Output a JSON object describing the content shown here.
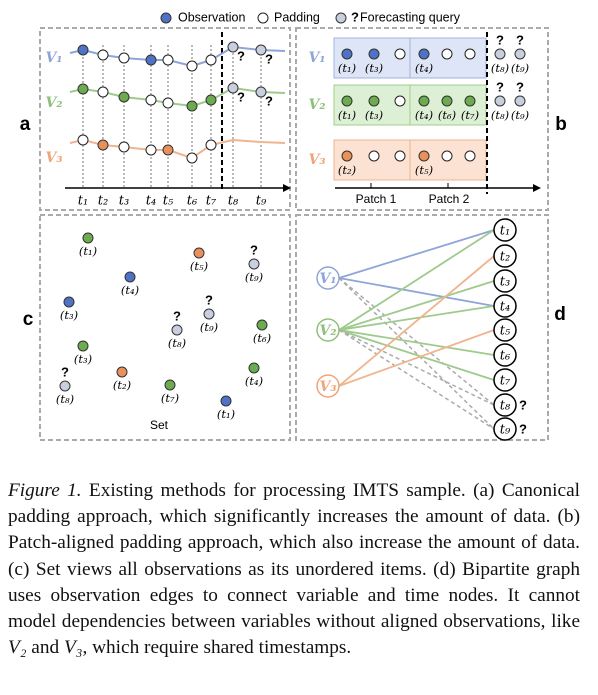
{
  "legend": {
    "observation": "Observation",
    "padding": "Padding",
    "query_mark": "?",
    "query": "Forecasting query"
  },
  "panel_labels": [
    "a",
    "b",
    "c",
    "d"
  ],
  "panel_a": {
    "variables": [
      "V₁",
      "V₂",
      "V₃"
    ],
    "times": [
      "t₁",
      "t₂",
      "t₃",
      "t₄",
      "t₅",
      "t₆",
      "t₇",
      "t₈",
      "t₉"
    ],
    "query_marks": [
      "?",
      "?",
      "?",
      "?"
    ]
  },
  "panel_b": {
    "variables": [
      "V₁",
      "V₂",
      "V₃"
    ],
    "rows": [
      [
        "(t₁)",
        "(t₃)",
        "(t₄)",
        "(t₈)",
        "(t₉)"
      ],
      [
        "(t₁)",
        "(t₃)",
        "(t₄)",
        "(t₆)",
        "(t₇)",
        "(t₈)",
        "(t₉)"
      ],
      [
        "(t₂)",
        "(t₅)"
      ]
    ],
    "query_marks": [
      "?",
      "?",
      "?",
      "?"
    ],
    "patches": [
      "Patch 1",
      "Patch 2"
    ]
  },
  "panel_c": {
    "points": [
      "(t₁)",
      "(t₅)",
      "(t₉)",
      "(t₄)",
      "(t₃)",
      "(t₉)",
      "(t₈)",
      "(t₆)",
      "(t₃)",
      "(t₈)",
      "(t₂)",
      "(t₄)",
      "(t₇)",
      "(t₁)"
    ],
    "query_marks": [
      "?",
      "?",
      "?",
      "?"
    ],
    "label": "Set"
  },
  "panel_d": {
    "variables": [
      "V₁",
      "V₂",
      "V₃"
    ],
    "times": [
      "t₁",
      "t₂",
      "t₃",
      "t₄",
      "t₅",
      "t₆",
      "t₇",
      "t₈",
      "t₉"
    ],
    "query_marks": [
      "?",
      "?"
    ]
  },
  "caption": {
    "label": "Figure 1.",
    "parts": [
      " Existing methods for processing IMTS sample. (a) Canonical padding approach, which significantly increases the amount of data. (b) Patch-aligned padding approach, which also increase the amount of data. (c) Set views all observations as its unordered items. (d) Bipartite graph uses observation edges to connect variable and time nodes. It cannot model dependencies between variables without aligned observations, like ",
      "V₂",
      " and ",
      "V₃",
      ", which require shared timestamps."
    ]
  }
}
